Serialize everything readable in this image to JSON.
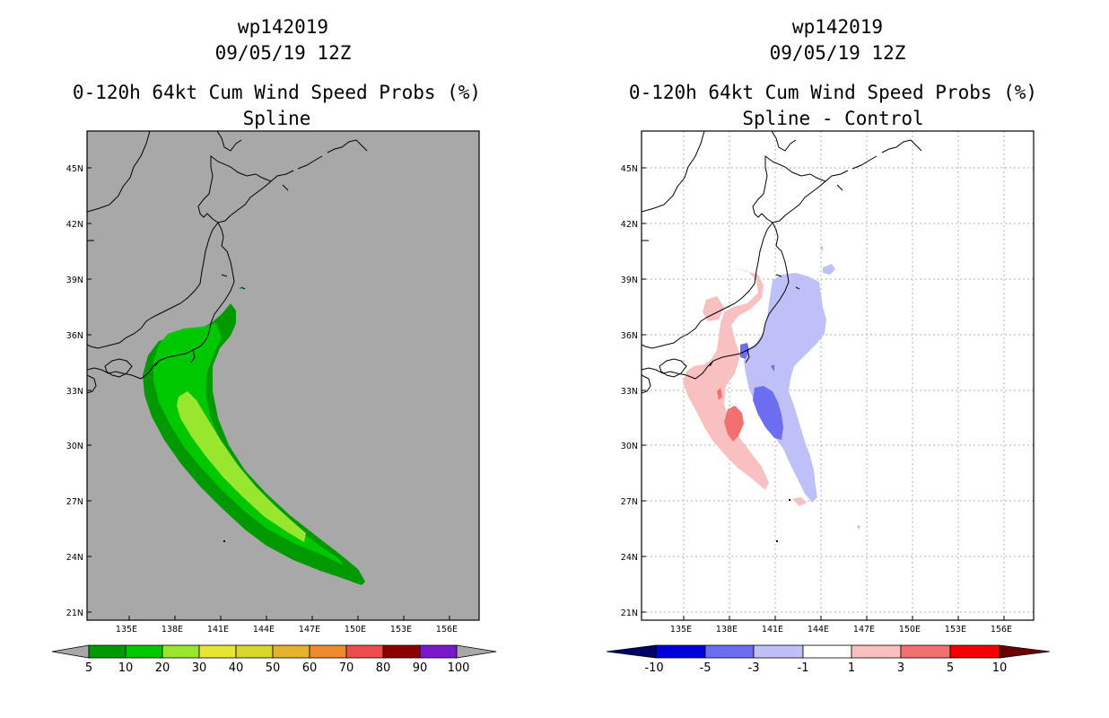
{
  "left": {
    "title1": "wp142019",
    "title2": "09/05/19 12Z",
    "title3": "0-120h 64kt Cum Wind Speed Probs (%)",
    "title4": "Spline",
    "colorbar_labels": [
      "5",
      "10",
      "20",
      "30",
      "40",
      "50",
      "60",
      "70",
      "80",
      "90",
      "100"
    ],
    "colorbar_colors": [
      "#009900",
      "#00c800",
      "#99e62f",
      "#e6e633",
      "#d6d62e",
      "#e6b22e",
      "#ed8c2e",
      "#ee4d4d",
      "#8c0000",
      "#7a18cc"
    ]
  },
  "right": {
    "title1": "wp142019",
    "title2": "09/05/19 12Z",
    "title3": "0-120h 64kt Cum Wind Speed Probs (%)",
    "title4": "Spline - Control",
    "colorbar_labels": [
      "-10",
      "-5",
      "-3",
      "-1",
      "1",
      "3",
      "5",
      "10"
    ],
    "colorbar_colors": [
      "#0000d9",
      "#6d6df2",
      "#c0c0f8",
      "#ffffff",
      "#f8c0c0",
      "#f27070",
      "#f50000"
    ]
  },
  "lat_labels": [
    "45N",
    "42N",
    "39N",
    "36N",
    "33N",
    "30N",
    "27N",
    "24N",
    "21N"
  ],
  "lon_labels": [
    "135E",
    "138E",
    "141E",
    "144E",
    "147E",
    "150E",
    "153E",
    "156E"
  ],
  "colors": {
    "land_sea_bg_left": "#a8a8a8",
    "prob_5": "#009900",
    "prob_10": "#00c800",
    "prob_20": "#99e62f",
    "diff_neg_light": "#c0c0f8",
    "diff_neg_mid": "#6d6df2",
    "diff_pos_light": "#f8c0c0",
    "diff_pos_mid": "#f27070"
  }
}
